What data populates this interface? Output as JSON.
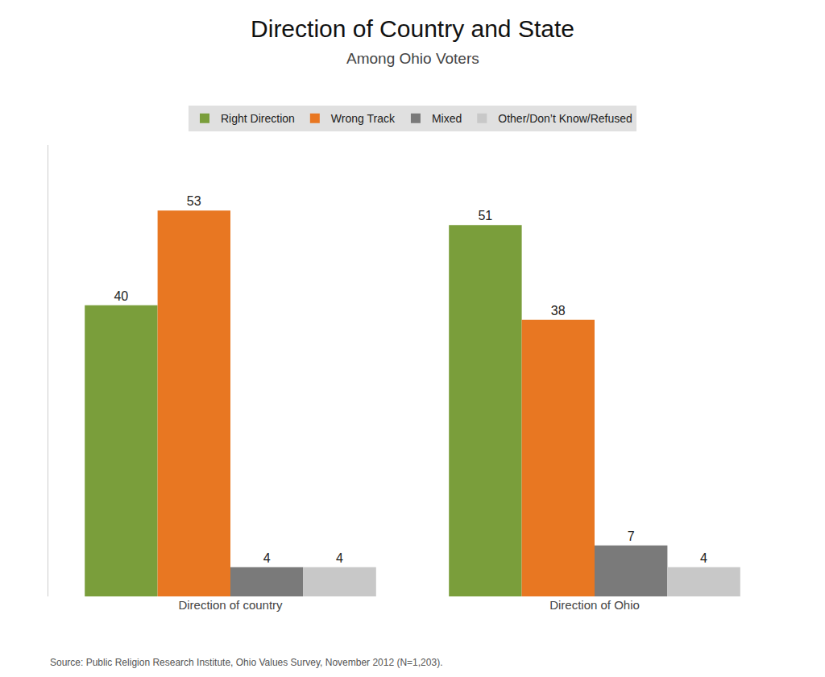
{
  "chart_data": {
    "type": "bar",
    "title": "Direction of Country and State",
    "subtitle": "Among Ohio Voters",
    "annotations": [
      "Source: Public Religion Research Institute, Ohio Values Survey, November 2012 (N=1,203)."
    ],
    "categories": [
      "Direction of country",
      "Direction of Ohio"
    ],
    "series": [
      {
        "name": "Right Direction",
        "color": "#7a9e3b",
        "values": [
          40,
          51
        ]
      },
      {
        "name": "Wrong Track",
        "color": "#e87722",
        "values": [
          53,
          38
        ]
      },
      {
        "name": "Mixed",
        "color": "#7a7a7a",
        "values": [
          4,
          7
        ]
      },
      {
        "name": "Other/Don’t Know/Refused",
        "color": "#c8c8c8",
        "values": [
          4,
          4
        ]
      }
    ],
    "ylim": [
      0,
      62
    ],
    "grid": false,
    "legend": "top",
    "data_labels": true,
    "tick_labels": "x"
  }
}
